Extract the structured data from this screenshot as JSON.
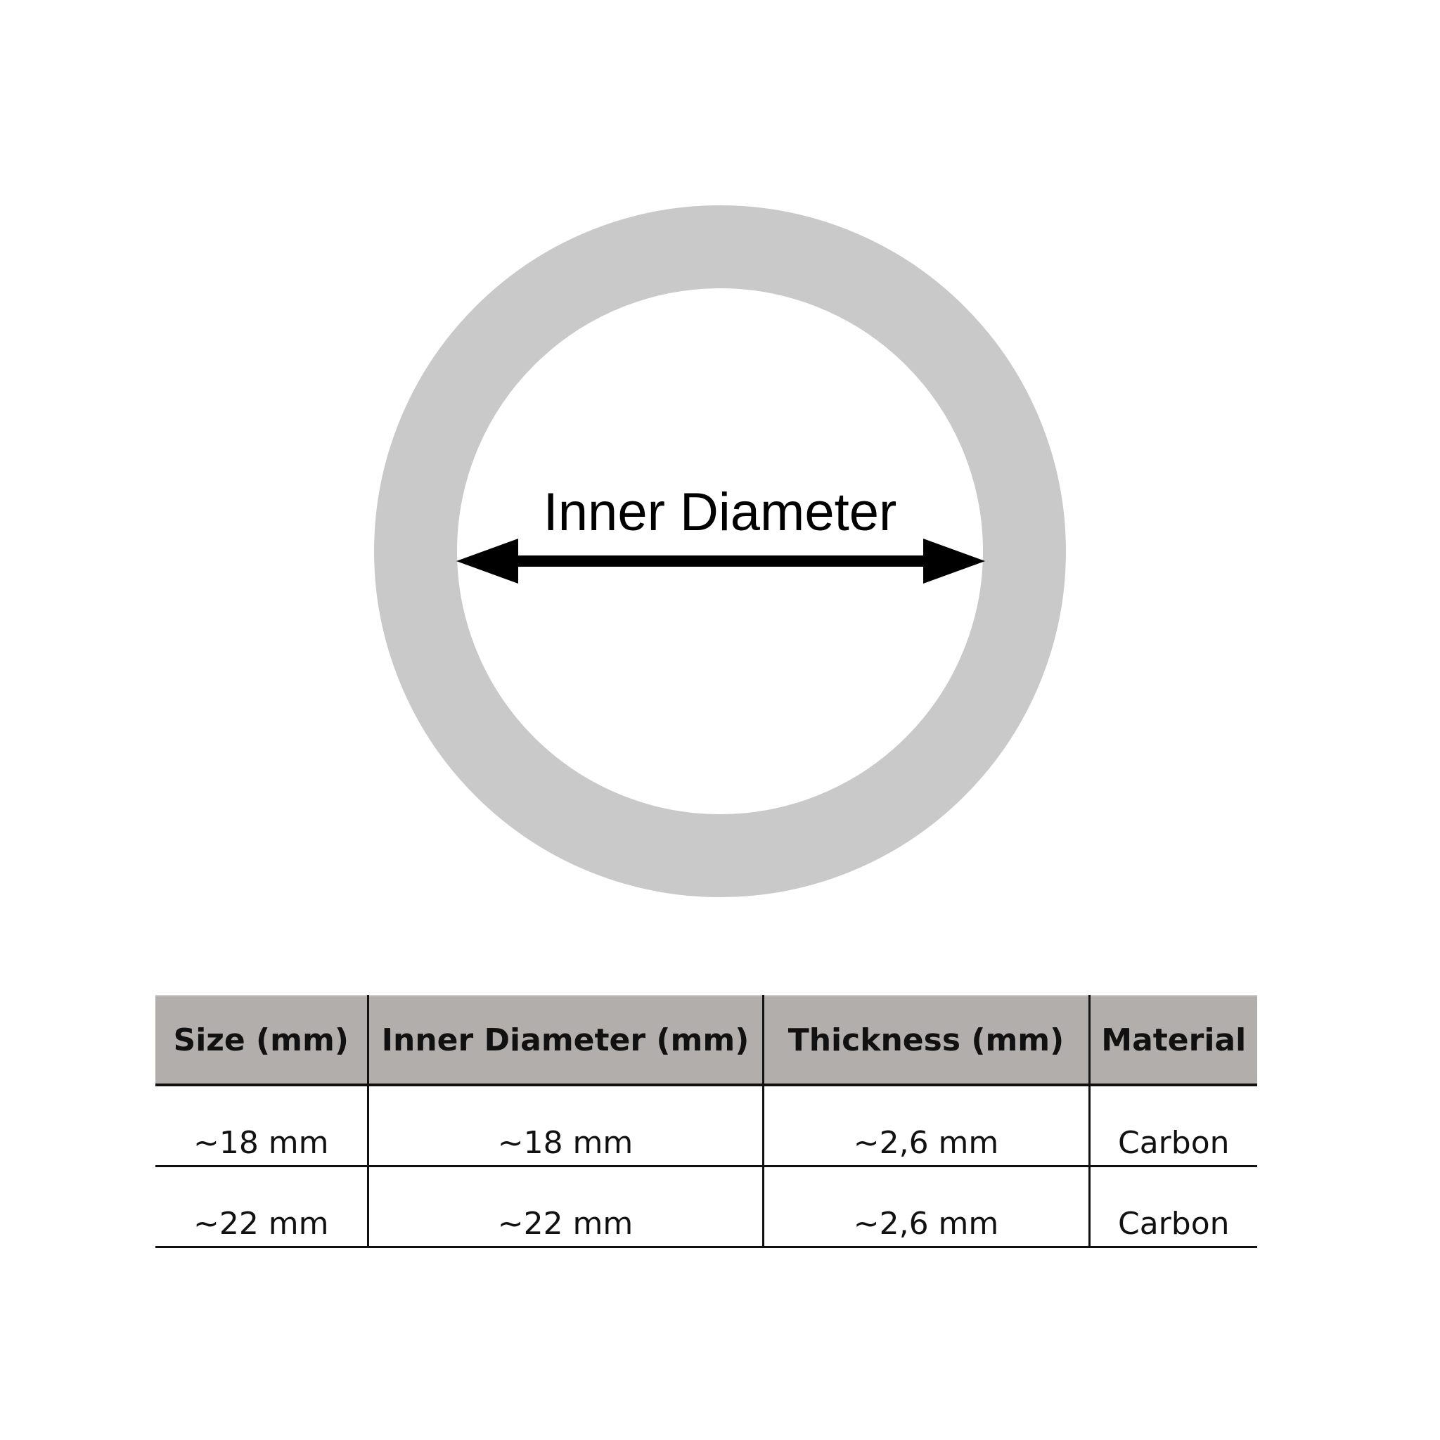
{
  "diagram": {
    "label": "Inner Diameter",
    "ring_color": "#c9c9c9",
    "arrow_color": "#000000"
  },
  "table": {
    "headers": [
      "Size (mm)",
      "Inner Diameter (mm)",
      "Thickness (mm)",
      "Material"
    ],
    "rows": [
      [
        "~18 mm",
        "~18 mm",
        "~2,6 mm",
        "Carbon"
      ],
      [
        "~22 mm",
        "~22 mm",
        "~2,6 mm",
        "Carbon"
      ]
    ],
    "header_bg": "#b2aeac"
  }
}
